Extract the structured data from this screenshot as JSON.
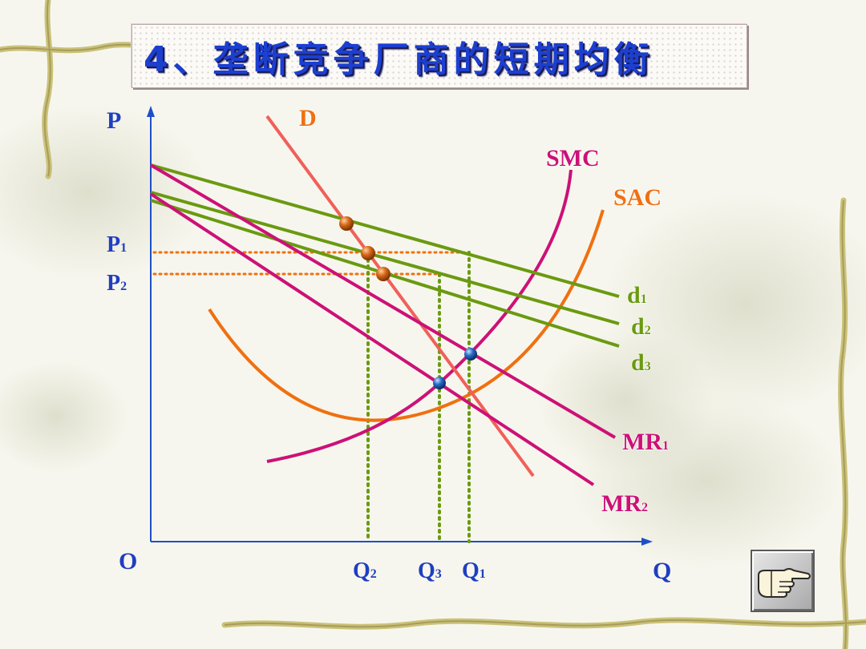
{
  "title": "4、垄断竞争厂商的短期均衡",
  "diagram": {
    "axis": {
      "y_label": "P",
      "x_label": "Q",
      "origin_label": "O",
      "price_ticks": [
        {
          "main": "P",
          "sub": "1"
        },
        {
          "main": "P",
          "sub": "2"
        }
      ],
      "quantity_ticks": [
        {
          "main": "Q",
          "sub": "2"
        },
        {
          "main": "Q",
          "sub": "3"
        },
        {
          "main": "Q",
          "sub": "1"
        }
      ]
    },
    "curves": {
      "D": {
        "main": "D",
        "sub": ""
      },
      "SMC": {
        "main": "SMC",
        "sub": ""
      },
      "SAC": {
        "main": "SAC",
        "sub": ""
      },
      "d1": {
        "main": "d",
        "sub": "1"
      },
      "d2": {
        "main": "d",
        "sub": "2"
      },
      "d3": {
        "main": "d",
        "sub": "3"
      },
      "MR1": {
        "main": "MR",
        "sub": "1"
      },
      "MR2": {
        "main": "MR",
        "sub": "2"
      }
    },
    "colors": {
      "axis": "#1f4fc8",
      "demand_D": "#f0605a",
      "smc": "#cc1177",
      "sac": "#f07010",
      "d_curves": "#6a9a10",
      "mr_curves": "#cc1177",
      "guide_lines": "#f07010",
      "quantity_guides": "#6a9a10",
      "label_orange": "#f07010",
      "label_magenta": "#cc1177",
      "label_green": "#6a9a10",
      "label_axis": "#1f3fc0"
    }
  },
  "nav_button": {
    "icon": "pointing-hand-icon"
  }
}
